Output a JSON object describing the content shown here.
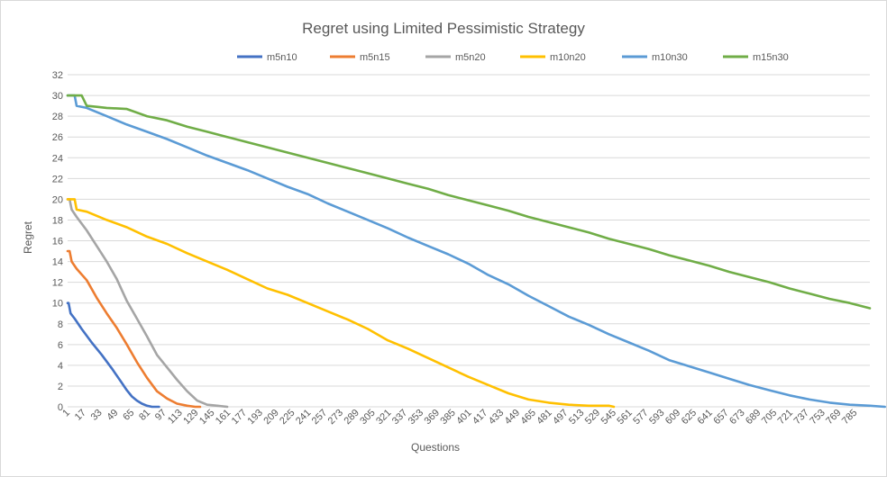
{
  "chart_data": {
    "type": "line",
    "title": "Regret using Limited Pessimistic Strategy",
    "xlabel": "Questions",
    "ylabel": "Regret",
    "ylim": [
      0,
      32
    ],
    "yticks": [
      0,
      2,
      4,
      6,
      8,
      10,
      12,
      14,
      16,
      18,
      20,
      22,
      24,
      26,
      28,
      30,
      32
    ],
    "xlim": [
      1,
      800
    ],
    "xticks": [
      1,
      17,
      33,
      49,
      65,
      81,
      97,
      113,
      129,
      145,
      161,
      177,
      193,
      209,
      225,
      241,
      257,
      273,
      289,
      305,
      321,
      337,
      353,
      369,
      385,
      401,
      417,
      433,
      449,
      465,
      481,
      497,
      513,
      529,
      545,
      561,
      577,
      593,
      609,
      625,
      641,
      657,
      673,
      689,
      705,
      721,
      737,
      753,
      769,
      785
    ],
    "grid": true,
    "legend_position": "top",
    "series": [
      {
        "name": "m5n10",
        "color": "#4472c4",
        "points": [
          [
            1,
            10
          ],
          [
            2,
            10
          ],
          [
            4,
            9
          ],
          [
            8,
            8.5
          ],
          [
            15,
            7.5
          ],
          [
            25,
            6.2
          ],
          [
            35,
            5
          ],
          [
            45,
            3.7
          ],
          [
            55,
            2.3
          ],
          [
            60,
            1.6
          ],
          [
            65,
            1
          ],
          [
            70,
            0.6
          ],
          [
            75,
            0.3
          ],
          [
            80,
            0.1
          ],
          [
            85,
            0
          ],
          [
            92,
            0
          ]
        ]
      },
      {
        "name": "m5n15",
        "color": "#ed7d31",
        "points": [
          [
            1,
            15
          ],
          [
            3,
            15
          ],
          [
            5,
            14
          ],
          [
            10,
            13.3
          ],
          [
            20,
            12.2
          ],
          [
            30,
            10.5
          ],
          [
            40,
            9
          ],
          [
            50,
            7.6
          ],
          [
            60,
            6
          ],
          [
            70,
            4.3
          ],
          [
            80,
            2.8
          ],
          [
            90,
            1.5
          ],
          [
            100,
            0.8
          ],
          [
            110,
            0.3
          ],
          [
            120,
            0.1
          ],
          [
            128,
            0
          ],
          [
            133,
            0
          ]
        ]
      },
      {
        "name": "m5n20",
        "color": "#a5a5a5",
        "points": [
          [
            1,
            20
          ],
          [
            3,
            20
          ],
          [
            5,
            19
          ],
          [
            10,
            18.3
          ],
          [
            20,
            17
          ],
          [
            30,
            15.5
          ],
          [
            40,
            14
          ],
          [
            50,
            12.3
          ],
          [
            60,
            10.2
          ],
          [
            70,
            8.5
          ],
          [
            80,
            6.8
          ],
          [
            90,
            5
          ],
          [
            100,
            3.8
          ],
          [
            110,
            2.6
          ],
          [
            120,
            1.5
          ],
          [
            130,
            0.6
          ],
          [
            140,
            0.2
          ],
          [
            150,
            0.1
          ],
          [
            160,
            0
          ]
        ]
      },
      {
        "name": "m10n20",
        "color": "#ffc000",
        "points": [
          [
            1,
            20
          ],
          [
            8,
            20
          ],
          [
            10,
            19
          ],
          [
            20,
            18.8
          ],
          [
            40,
            18
          ],
          [
            60,
            17.3
          ],
          [
            80,
            16.4
          ],
          [
            100,
            15.7
          ],
          [
            120,
            14.8
          ],
          [
            140,
            14
          ],
          [
            160,
            13.2
          ],
          [
            180,
            12.3
          ],
          [
            200,
            11.4
          ],
          [
            220,
            10.8
          ],
          [
            240,
            10
          ],
          [
            260,
            9.2
          ],
          [
            280,
            8.4
          ],
          [
            300,
            7.5
          ],
          [
            320,
            6.4
          ],
          [
            340,
            5.6
          ],
          [
            360,
            4.7
          ],
          [
            380,
            3.8
          ],
          [
            400,
            2.9
          ],
          [
            420,
            2.1
          ],
          [
            440,
            1.3
          ],
          [
            460,
            0.7
          ],
          [
            480,
            0.4
          ],
          [
            500,
            0.2
          ],
          [
            520,
            0.1
          ],
          [
            540,
            0.1
          ],
          [
            545,
            0
          ]
        ]
      },
      {
        "name": "m10n30",
        "color": "#5b9bd5",
        "points": [
          [
            1,
            30
          ],
          [
            8,
            30
          ],
          [
            10,
            29
          ],
          [
            20,
            28.8
          ],
          [
            40,
            28
          ],
          [
            60,
            27.2
          ],
          [
            80,
            26.5
          ],
          [
            100,
            25.8
          ],
          [
            120,
            25
          ],
          [
            140,
            24.2
          ],
          [
            160,
            23.5
          ],
          [
            180,
            22.8
          ],
          [
            200,
            22
          ],
          [
            220,
            21.2
          ],
          [
            240,
            20.5
          ],
          [
            260,
            19.6
          ],
          [
            280,
            18.8
          ],
          [
            300,
            18
          ],
          [
            320,
            17.2
          ],
          [
            340,
            16.3
          ],
          [
            360,
            15.5
          ],
          [
            380,
            14.7
          ],
          [
            400,
            13.8
          ],
          [
            420,
            12.7
          ],
          [
            440,
            11.8
          ],
          [
            460,
            10.7
          ],
          [
            480,
            9.7
          ],
          [
            500,
            8.7
          ],
          [
            520,
            7.9
          ],
          [
            540,
            7
          ],
          [
            560,
            6.2
          ],
          [
            580,
            5.4
          ],
          [
            600,
            4.5
          ],
          [
            620,
            3.9
          ],
          [
            640,
            3.3
          ],
          [
            660,
            2.7
          ],
          [
            680,
            2.1
          ],
          [
            700,
            1.6
          ],
          [
            720,
            1.1
          ],
          [
            740,
            0.7
          ],
          [
            760,
            0.4
          ],
          [
            780,
            0.2
          ],
          [
            800,
            0.1
          ],
          [
            815,
            0
          ]
        ]
      },
      {
        "name": "m15n30",
        "color": "#70ad47",
        "points": [
          [
            1,
            30
          ],
          [
            15,
            30
          ],
          [
            20,
            29
          ],
          [
            30,
            28.9
          ],
          [
            40,
            28.8
          ],
          [
            60,
            28.7
          ],
          [
            80,
            28
          ],
          [
            100,
            27.6
          ],
          [
            120,
            27
          ],
          [
            140,
            26.5
          ],
          [
            160,
            26
          ],
          [
            180,
            25.5
          ],
          [
            200,
            25
          ],
          [
            220,
            24.5
          ],
          [
            240,
            24
          ],
          [
            260,
            23.5
          ],
          [
            280,
            23
          ],
          [
            300,
            22.5
          ],
          [
            320,
            22
          ],
          [
            340,
            21.5
          ],
          [
            360,
            21
          ],
          [
            380,
            20.4
          ],
          [
            400,
            19.9
          ],
          [
            420,
            19.4
          ],
          [
            440,
            18.9
          ],
          [
            460,
            18.3
          ],
          [
            480,
            17.8
          ],
          [
            500,
            17.3
          ],
          [
            520,
            16.8
          ],
          [
            540,
            16.2
          ],
          [
            560,
            15.7
          ],
          [
            580,
            15.2
          ],
          [
            600,
            14.6
          ],
          [
            620,
            14.1
          ],
          [
            640,
            13.6
          ],
          [
            660,
            13
          ],
          [
            680,
            12.5
          ],
          [
            700,
            12
          ],
          [
            720,
            11.4
          ],
          [
            740,
            10.9
          ],
          [
            760,
            10.4
          ],
          [
            780,
            10
          ],
          [
            800,
            9.5
          ]
        ]
      }
    ]
  }
}
